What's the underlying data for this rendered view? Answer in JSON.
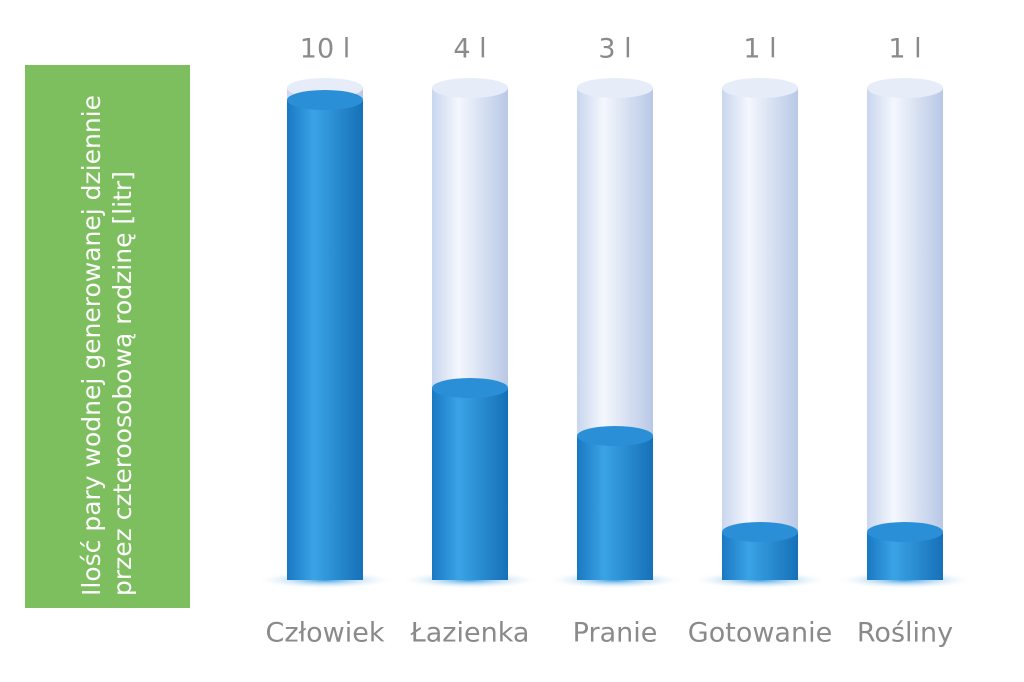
{
  "chart_data": {
    "type": "bar",
    "y_label": "Ilość pary wodnej generowanej dziennie przez czteroosobową rodzinę [litr]",
    "categories": [
      "Człowiek",
      "Łazienka",
      "Pranie",
      "Gotowanie",
      "Rośliny"
    ],
    "values": [
      10,
      4,
      3,
      1,
      1
    ],
    "value_labels": [
      "10 l",
      "4 l",
      "3 l",
      "1 l",
      "1 l"
    ],
    "color": "#2a8fd6"
  }
}
